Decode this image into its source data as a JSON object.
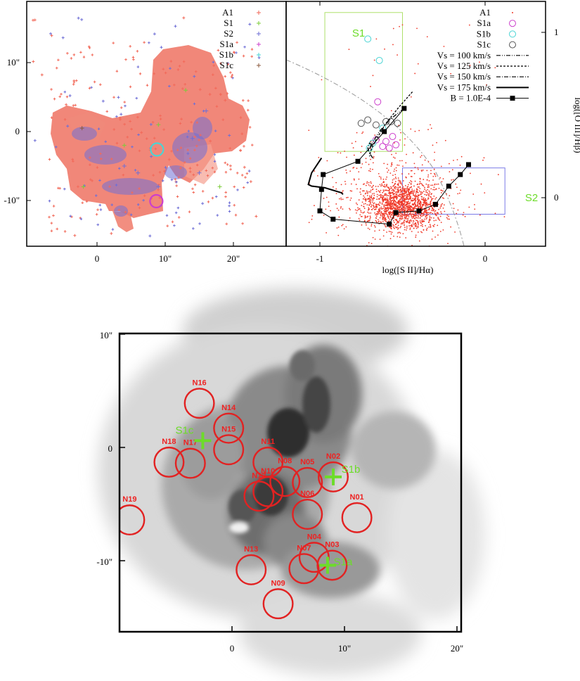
{
  "chart_data": [
    {
      "type": "scatter",
      "panel": "spatial map",
      "xlabel": "",
      "ylabel": "",
      "xlim": [
        -10,
        25
      ],
      "ylim": [
        -16.5,
        18
      ],
      "xticks": [
        "0",
        "10\"",
        "20\""
      ],
      "yticks": [
        "10\"",
        "0",
        "-10\""
      ],
      "legend_position": "top-right",
      "series": [
        {
          "name": "A1",
          "color": "#f26a5a",
          "marker": "plus",
          "approx_extent": "x -3..14, y -15..15",
          "values": []
        },
        {
          "name": "S1",
          "color": "#7ccc3a",
          "marker": "plus",
          "values": [
            [
              4,
              -2
            ],
            [
              9,
              1
            ],
            [
              13,
              6
            ],
            [
              18,
              -8
            ],
            [
              -2,
              -8
            ]
          ]
        },
        {
          "name": "S2",
          "color": "#6f6fd6",
          "marker": "plus",
          "values": [
            [
              4,
              -5
            ],
            [
              6,
              -6
            ],
            [
              9,
              -8
            ],
            [
              14,
              -1
            ],
            [
              15,
              -6
            ],
            [
              16,
              3
            ]
          ]
        },
        {
          "name": "S1a",
          "color": "#cc3fcc",
          "marker": "circle",
          "values": [
            [
              8.7,
              -10.1
            ]
          ]
        },
        {
          "name": "S1b",
          "color": "#4ad4d4",
          "marker": "circle",
          "values": [
            [
              8.8,
              -2.6
            ]
          ]
        },
        {
          "name": "S1c",
          "color": "#8b5a3c",
          "marker": "plus",
          "values": [
            [
              -2.2,
              0.5
            ]
          ]
        }
      ]
    },
    {
      "type": "scatter",
      "panel": "diagnostic diagram",
      "xlabel": "log([S II]/Hα)",
      "ylabel": "log([O III]/Hβ)",
      "xlim": [
        -1.2,
        0.15
      ],
      "ylim": [
        -0.25,
        1.15
      ],
      "xticks": [
        "-1",
        "0"
      ],
      "yticks": [
        "1",
        "0"
      ],
      "legend_position": "top-right",
      "boxes": [
        {
          "name": "S1",
          "color": "#aee06a",
          "x": [
            -0.97,
            -0.5
          ],
          "y": [
            0.28,
            1.12
          ]
        },
        {
          "name": "S2",
          "color": "#7a7ae6",
          "x": [
            -0.5,
            0.12
          ],
          "y": [
            -0.1,
            0.18
          ]
        }
      ],
      "series": [
        {
          "name": "A1",
          "color": "#f03a2a",
          "marker": "dot",
          "values": []
        },
        {
          "name": "S1a",
          "color": "#cc3fcc",
          "marker": "circle",
          "values": [
            [
              -0.66,
              0.35
            ],
            [
              -0.62,
              0.31
            ],
            [
              -0.6,
              0.34
            ],
            [
              -0.58,
              0.3
            ],
            [
              -0.56,
              0.37
            ],
            [
              -0.54,
              0.32
            ],
            [
              -0.65,
              0.58
            ]
          ]
        },
        {
          "name": "S1b",
          "color": "#4ad4d4",
          "marker": "circle",
          "values": [
            [
              -0.71,
              0.96
            ],
            [
              -0.64,
              0.83
            ],
            [
              -0.7,
              0.3
            ],
            [
              -0.68,
              0.33
            ],
            [
              -0.62,
              0.42
            ]
          ]
        },
        {
          "name": "S1c",
          "color": "#555555",
          "marker": "circle",
          "values": [
            [
              -0.75,
              0.45
            ],
            [
              -0.71,
              0.47
            ],
            [
              -0.66,
              0.44
            ],
            [
              -0.6,
              0.46
            ],
            [
              -0.57,
              0.46
            ],
            [
              -0.53,
              0.45
            ]
          ]
        },
        {
          "name": "Vs = 100 km/s",
          "color": "#000000",
          "style": "dash-dot-dot",
          "values": [
            [
              -0.49,
              0.54
            ],
            [
              -0.58,
              0.47
            ],
            [
              -0.64,
              0.4
            ],
            [
              -0.69,
              0.32
            ],
            [
              -0.7,
              0.29
            ]
          ]
        },
        {
          "name": "Vs = 125 km/s",
          "color": "#000000",
          "style": "dashed",
          "values": [
            [
              -0.44,
              0.64
            ],
            [
              -0.52,
              0.55
            ],
            [
              -0.6,
              0.45
            ],
            [
              -0.66,
              0.35
            ],
            [
              -0.69,
              0.29
            ],
            [
              -0.7,
              0.25
            ]
          ]
        },
        {
          "name": "Vs = 150 km/s",
          "color": "#000000",
          "style": "dash-dot",
          "values": [
            [
              -0.68,
              0.24
            ],
            [
              -0.7,
              0.27
            ],
            [
              -0.71,
              0.3
            ],
            [
              -0.7,
              0.33
            ],
            [
              -0.68,
              0.32
            ]
          ]
        },
        {
          "name": "Vs = 175 km/s",
          "color": "#000000",
          "style": "solid",
          "values": [
            [
              -0.99,
              0.24
            ],
            [
              -1.05,
              0.15
            ],
            [
              -1.07,
              0.08
            ],
            [
              -1.05,
              0.07
            ],
            [
              -0.97,
              0.06
            ],
            [
              -0.87,
              0.03
            ],
            [
              -0.86,
              0.02
            ]
          ]
        },
        {
          "name": "B = 1.0E-4",
          "color": "#000000",
          "marker": "square",
          "values": [
            [
              -0.49,
              0.54
            ],
            [
              -0.61,
              0.4
            ],
            [
              -0.77,
              0.22
            ],
            [
              -0.98,
              0.14
            ],
            [
              -0.99,
              0.05
            ],
            [
              -1.0,
              -0.08
            ],
            [
              -0.92,
              -0.13
            ],
            [
              -0.58,
              -0.16
            ],
            [
              -0.54,
              -0.09
            ],
            [
              -0.4,
              -0.08
            ],
            [
              -0.3,
              -0.04
            ],
            [
              -0.22,
              0.07
            ],
            [
              -0.15,
              0.14
            ],
            [
              -0.1,
              0.2
            ]
          ]
        }
      ]
    },
    {
      "type": "scatter",
      "panel": "greyscale image with apertures",
      "xlabel": "",
      "ylabel": "",
      "xlim": [
        -10,
        20
      ],
      "ylim": [
        -16.5,
        10
      ],
      "xticks": [
        "0",
        "10\"",
        "20\""
      ],
      "yticks": [
        "10\"",
        "0",
        "-10\""
      ],
      "circle_radius": 1.3,
      "apertures": [
        {
          "name": "N01",
          "x": 11.1,
          "y": -6.2
        },
        {
          "name": "N02",
          "x": 9.0,
          "y": -2.6
        },
        {
          "name": "N03",
          "x": 8.9,
          "y": -10.4
        },
        {
          "name": "N04",
          "x": 7.3,
          "y": -9.7
        },
        {
          "name": "N05",
          "x": 6.7,
          "y": -3.1
        },
        {
          "name": "N06",
          "x": 6.7,
          "y": -5.9
        },
        {
          "name": "N07",
          "x": 6.4,
          "y": -10.7
        },
        {
          "name": "N08",
          "x": 4.7,
          "y": -3.0
        },
        {
          "name": "N09",
          "x": 4.1,
          "y": -13.8
        },
        {
          "name": "N10",
          "x": 3.2,
          "y": -3.9
        },
        {
          "name": "N11",
          "x": 3.2,
          "y": -1.3
        },
        {
          "name": "N12",
          "x": 2.4,
          "y": -4.3
        },
        {
          "name": "N13",
          "x": 1.7,
          "y": -10.8
        },
        {
          "name": "N14",
          "x": -0.3,
          "y": 1.7
        },
        {
          "name": "N15",
          "x": -0.3,
          "y": -0.2
        },
        {
          "name": "N16",
          "x": -2.9,
          "y": 3.9
        },
        {
          "name": "N17",
          "x": -3.7,
          "y": -1.4
        },
        {
          "name": "N18",
          "x": -5.6,
          "y": -1.3
        },
        {
          "name": "N19",
          "x": -9.1,
          "y": -6.4
        }
      ],
      "markers": [
        {
          "name": "S1a",
          "x": 8.5,
          "y": -10.4
        },
        {
          "name": "S1b",
          "x": 9.0,
          "y": -2.6
        },
        {
          "name": "S1c",
          "x": -2.6,
          "y": 0.6
        }
      ],
      "marker_color": "#6ddc2a",
      "circle_color": "#e22222"
    }
  ]
}
